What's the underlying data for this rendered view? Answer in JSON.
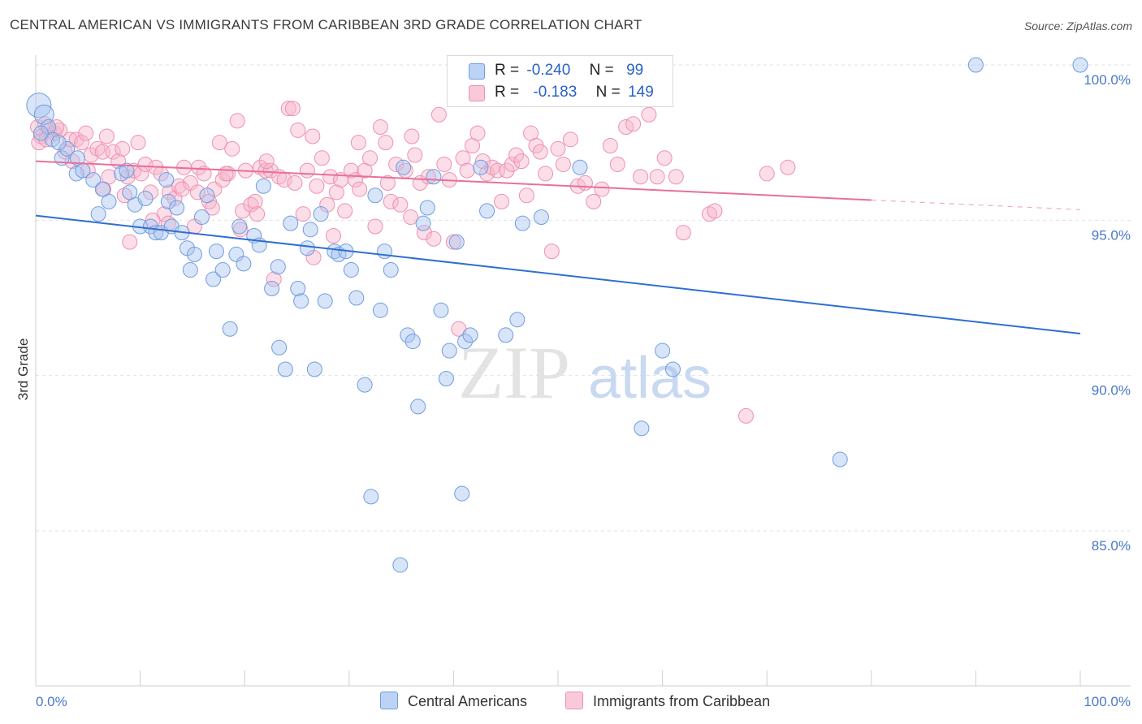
{
  "title": "CENTRAL AMERICAN VS IMMIGRANTS FROM CARIBBEAN 3RD GRADE CORRELATION CHART",
  "source": "Source: ZipAtlas.com",
  "watermark": {
    "zip": "ZIP",
    "atlas": "atlas"
  },
  "legend": {
    "r_label": "R =",
    "n_label": "N =",
    "rows": [
      {
        "r": "-0.240",
        "n": "99",
        "color": "#a8c4f0"
      },
      {
        "r": "-0.183",
        "n": "149",
        "color": "#f6b6cb"
      }
    ]
  },
  "bottom_legend": [
    "Central Americans",
    "Immigrants from Caribbean"
  ],
  "chart_data": {
    "type": "scatter",
    "title": "CENTRAL AMERICAN VS IMMIGRANTS FROM CARIBBEAN 3RD GRADE CORRELATION CHART",
    "xlabel": "",
    "ylabel": "3rd Grade",
    "xlim": [
      0,
      100
    ],
    "ylim": [
      80.5,
      100.4
    ],
    "x_tick_labels": [
      "0.0%",
      "100.0%"
    ],
    "y_ticks": [
      85,
      90,
      95,
      100
    ],
    "y_tick_labels": [
      "85.0%",
      "90.0%",
      "95.0%",
      "100.0%"
    ],
    "grid": true,
    "legend_position": "top-center",
    "series": [
      {
        "name": "Central Americans",
        "color": "#6f9de0",
        "fill": "#a8c4f0",
        "trend": {
          "x": [
            0,
            100
          ],
          "y": [
            95.15,
            91.35
          ],
          "color": "#2f6fd0"
        },
        "points": [
          [
            0.3,
            98.7
          ],
          [
            0.8,
            98.4
          ],
          [
            1.2,
            98.0
          ],
          [
            1.6,
            97.6
          ],
          [
            2.5,
            97.0
          ],
          [
            3.0,
            97.3
          ],
          [
            3.9,
            96.5
          ],
          [
            4.5,
            96.6
          ],
          [
            5.5,
            96.3
          ],
          [
            6.4,
            96.0
          ],
          [
            7.0,
            95.6
          ],
          [
            8.2,
            96.5
          ],
          [
            8.7,
            96.6
          ],
          [
            9.5,
            95.5
          ],
          [
            10.0,
            94.8
          ],
          [
            10.5,
            95.7
          ],
          [
            11.0,
            94.8
          ],
          [
            11.5,
            94.6
          ],
          [
            12.0,
            94.6
          ],
          [
            12.7,
            95.6
          ],
          [
            13.0,
            94.8
          ],
          [
            13.5,
            95.4
          ],
          [
            14.0,
            94.6
          ],
          [
            14.5,
            94.1
          ],
          [
            14.8,
            93.4
          ],
          [
            15.2,
            93.9
          ],
          [
            15.9,
            95.1
          ],
          [
            16.4,
            95.8
          ],
          [
            17.0,
            93.1
          ],
          [
            17.3,
            94.0
          ],
          [
            17.9,
            93.4
          ],
          [
            18.6,
            91.5
          ],
          [
            19.2,
            93.9
          ],
          [
            19.5,
            94.8
          ],
          [
            19.9,
            93.6
          ],
          [
            20.9,
            94.5
          ],
          [
            21.4,
            94.2
          ],
          [
            21.8,
            96.1
          ],
          [
            22.6,
            92.8
          ],
          [
            23.2,
            93.5
          ],
          [
            23.3,
            90.9
          ],
          [
            23.9,
            90.2
          ],
          [
            24.4,
            94.9
          ],
          [
            25.1,
            92.8
          ],
          [
            25.4,
            92.4
          ],
          [
            26.0,
            94.1
          ],
          [
            26.3,
            94.7
          ],
          [
            26.7,
            90.2
          ],
          [
            27.3,
            95.2
          ],
          [
            27.7,
            92.4
          ],
          [
            28.6,
            94.0
          ],
          [
            29.0,
            93.9
          ],
          [
            29.7,
            94.0
          ],
          [
            30.2,
            93.4
          ],
          [
            30.7,
            92.5
          ],
          [
            31.5,
            89.7
          ],
          [
            32.1,
            86.1
          ],
          [
            32.5,
            95.8
          ],
          [
            33.0,
            92.1
          ],
          [
            33.4,
            94.0
          ],
          [
            34.0,
            93.4
          ],
          [
            34.9,
            83.9
          ],
          [
            35.2,
            96.7
          ],
          [
            35.6,
            91.3
          ],
          [
            36.1,
            91.1
          ],
          [
            36.6,
            89.0
          ],
          [
            37.1,
            94.9
          ],
          [
            37.5,
            95.4
          ],
          [
            38.1,
            96.4
          ],
          [
            38.8,
            92.1
          ],
          [
            39.3,
            89.9
          ],
          [
            39.6,
            90.8
          ],
          [
            40.3,
            94.3
          ],
          [
            40.8,
            86.2
          ],
          [
            41.1,
            91.1
          ],
          [
            41.6,
            91.3
          ],
          [
            42.6,
            96.7
          ],
          [
            43.2,
            95.3
          ],
          [
            45.0,
            91.3
          ],
          [
            46.1,
            91.8
          ],
          [
            46.6,
            94.9
          ],
          [
            48.4,
            95.1
          ],
          [
            52.1,
            96.7
          ],
          [
            58.0,
            88.3
          ],
          [
            60.0,
            90.8
          ],
          [
            61.0,
            90.2
          ],
          [
            77.0,
            87.3
          ],
          [
            90.0,
            100.0
          ],
          [
            100.0,
            100.0
          ],
          [
            59.8,
            100.0
          ],
          [
            0.5,
            97.8
          ],
          [
            2.2,
            97.5
          ],
          [
            4.0,
            97.0
          ],
          [
            6.0,
            95.2
          ],
          [
            9.0,
            95.9
          ],
          [
            12.5,
            96.3
          ]
        ]
      },
      {
        "name": "Immigrants from Caribbean",
        "color": "#ef8fb0",
        "fill": "#f6b6cb",
        "trend": {
          "x": [
            0,
            80
          ],
          "y": [
            96.9,
            95.65
          ],
          "color": "#e8709a",
          "dashed_extension": {
            "x": [
              80,
              100
            ],
            "y": [
              95.65,
              95.34
            ]
          }
        },
        "points": [
          [
            0.2,
            98.0
          ],
          [
            0.5,
            97.7
          ],
          [
            0.9,
            98.1
          ],
          [
            1.3,
            97.9
          ],
          [
            1.8,
            97.8
          ],
          [
            2.3,
            97.9
          ],
          [
            2.8,
            97.2
          ],
          [
            3.3,
            97.6
          ],
          [
            3.9,
            97.6
          ],
          [
            4.4,
            97.5
          ],
          [
            4.8,
            97.8
          ],
          [
            5.3,
            97.1
          ],
          [
            5.9,
            97.3
          ],
          [
            6.4,
            97.2
          ],
          [
            6.8,
            97.7
          ],
          [
            7.4,
            97.2
          ],
          [
            7.9,
            96.9
          ],
          [
            8.3,
            97.3
          ],
          [
            8.8,
            96.4
          ],
          [
            9.4,
            96.6
          ],
          [
            9.8,
            97.5
          ],
          [
            10.1,
            96.5
          ],
          [
            10.5,
            96.8
          ],
          [
            11.0,
            95.9
          ],
          [
            11.5,
            96.7
          ],
          [
            12.0,
            96.5
          ],
          [
            12.3,
            95.2
          ],
          [
            12.8,
            95.9
          ],
          [
            13.3,
            95.7
          ],
          [
            13.7,
            96.1
          ],
          [
            14.2,
            96.7
          ],
          [
            14.8,
            96.2
          ],
          [
            15.2,
            94.8
          ],
          [
            15.6,
            96.7
          ],
          [
            16.1,
            96.5
          ],
          [
            16.6,
            95.6
          ],
          [
            17.1,
            96.0
          ],
          [
            17.6,
            97.5
          ],
          [
            17.9,
            96.3
          ],
          [
            18.4,
            96.5
          ],
          [
            18.8,
            97.3
          ],
          [
            19.3,
            98.2
          ],
          [
            19.8,
            95.3
          ],
          [
            20.1,
            96.6
          ],
          [
            20.6,
            95.5
          ],
          [
            21.0,
            95.6
          ],
          [
            21.5,
            96.7
          ],
          [
            22.0,
            96.6
          ],
          [
            22.5,
            96.6
          ],
          [
            22.8,
            93.1
          ],
          [
            23.3,
            96.4
          ],
          [
            23.8,
            96.3
          ],
          [
            24.2,
            98.6
          ],
          [
            24.6,
            98.6
          ],
          [
            25.1,
            97.9
          ],
          [
            25.6,
            95.2
          ],
          [
            26.0,
            96.6
          ],
          [
            26.5,
            97.7
          ],
          [
            26.9,
            96.1
          ],
          [
            27.4,
            97.0
          ],
          [
            27.9,
            95.5
          ],
          [
            28.2,
            96.4
          ],
          [
            28.8,
            95.9
          ],
          [
            29.2,
            96.3
          ],
          [
            29.6,
            95.3
          ],
          [
            30.2,
            96.6
          ],
          [
            30.6,
            96.3
          ],
          [
            31.0,
            96.0
          ],
          [
            31.5,
            96.6
          ],
          [
            32.0,
            97.0
          ],
          [
            32.5,
            94.8
          ],
          [
            33.0,
            98.0
          ],
          [
            33.5,
            97.5
          ],
          [
            34.0,
            95.6
          ],
          [
            34.5,
            96.8
          ],
          [
            34.9,
            95.5
          ],
          [
            35.4,
            96.6
          ],
          [
            35.9,
            95.1
          ],
          [
            36.3,
            97.1
          ],
          [
            36.8,
            96.2
          ],
          [
            37.2,
            94.6
          ],
          [
            37.6,
            96.4
          ],
          [
            38.1,
            94.4
          ],
          [
            38.6,
            98.4
          ],
          [
            39.1,
            96.8
          ],
          [
            39.6,
            96.3
          ],
          [
            40.0,
            94.3
          ],
          [
            40.5,
            91.5
          ],
          [
            40.9,
            97.0
          ],
          [
            41.3,
            96.6
          ],
          [
            41.8,
            97.4
          ],
          [
            42.3,
            97.8
          ],
          [
            42.8,
            96.9
          ],
          [
            43.2,
            96.5
          ],
          [
            43.7,
            96.7
          ],
          [
            44.2,
            96.6
          ],
          [
            44.6,
            95.6
          ],
          [
            45.1,
            96.6
          ],
          [
            45.6,
            96.8
          ],
          [
            46.0,
            97.1
          ],
          [
            46.5,
            96.9
          ],
          [
            47.0,
            95.8
          ],
          [
            47.4,
            97.8
          ],
          [
            47.9,
            97.4
          ],
          [
            48.3,
            97.2
          ],
          [
            48.8,
            96.5
          ],
          [
            49.4,
            94.0
          ],
          [
            50.0,
            97.3
          ],
          [
            50.5,
            96.8
          ],
          [
            51.2,
            97.6
          ],
          [
            51.9,
            96.1
          ],
          [
            52.6,
            96.2
          ],
          [
            53.4,
            95.6
          ],
          [
            54.2,
            96.0
          ],
          [
            55.0,
            97.4
          ],
          [
            55.7,
            96.8
          ],
          [
            56.5,
            98.0
          ],
          [
            57.2,
            98.1
          ],
          [
            57.9,
            96.4
          ],
          [
            58.7,
            98.4
          ],
          [
            59.5,
            96.4
          ],
          [
            60.2,
            97.0
          ],
          [
            61.3,
            96.4
          ],
          [
            62.0,
            94.6
          ],
          [
            64.5,
            95.2
          ],
          [
            65.0,
            95.3
          ],
          [
            68.0,
            88.7
          ],
          [
            70.0,
            96.5
          ],
          [
            72.0,
            96.7
          ],
          [
            60.0,
            100.0
          ],
          [
            0.3,
            97.5
          ],
          [
            1.0,
            97.6
          ],
          [
            2.0,
            98.0
          ],
          [
            3.5,
            96.9
          ],
          [
            5.0,
            96.6
          ],
          [
            6.5,
            96.0
          ],
          [
            7.0,
            96.4
          ],
          [
            8.5,
            95.8
          ],
          [
            9.0,
            94.3
          ],
          [
            11.2,
            95.0
          ],
          [
            12.7,
            94.9
          ],
          [
            14.0,
            96.0
          ],
          [
            15.5,
            95.9
          ],
          [
            16.9,
            95.4
          ],
          [
            18.2,
            96.5
          ],
          [
            19.6,
            94.7
          ],
          [
            21.2,
            95.2
          ],
          [
            22.1,
            96.9
          ],
          [
            24.8,
            96.2
          ],
          [
            26.6,
            93.8
          ],
          [
            28.5,
            94.5
          ],
          [
            30.9,
            97.5
          ],
          [
            33.7,
            96.2
          ],
          [
            36.0,
            97.7
          ]
        ]
      }
    ]
  }
}
